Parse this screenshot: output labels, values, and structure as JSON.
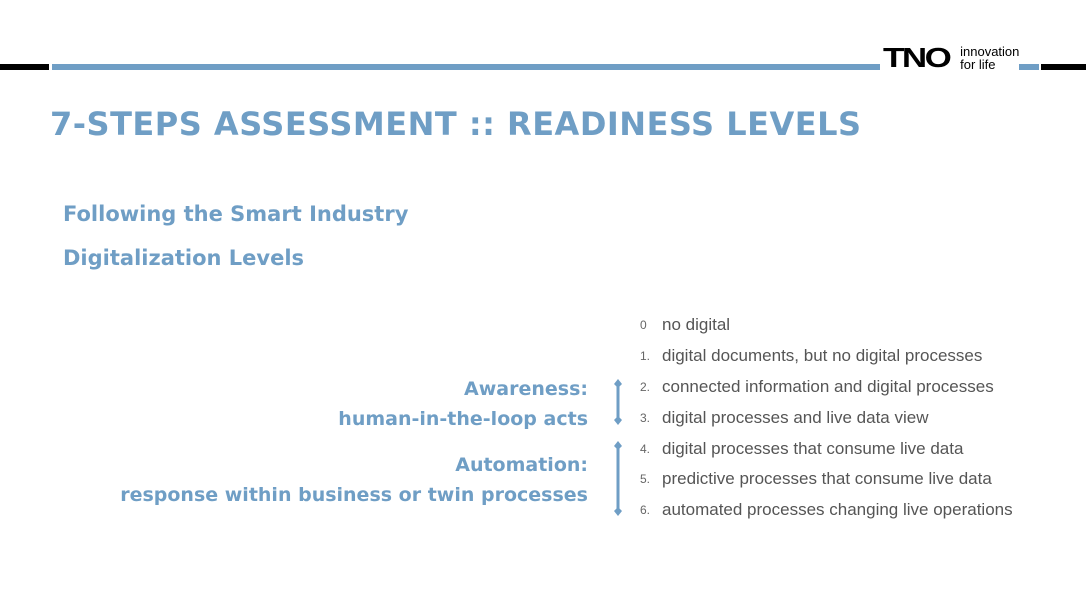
{
  "logo": {
    "mark": "TNO",
    "tagline_line1": "innovation",
    "tagline_line2": "for life"
  },
  "title": "7-STEPS ASSESSMENT :: READINESS LEVELS",
  "subtitle": {
    "line1": "Following the Smart Industry",
    "line2": "Digitalization Levels"
  },
  "groups": {
    "awareness": {
      "title": "Awareness:",
      "subtitle": "human-in-the-loop acts"
    },
    "automation": {
      "title": "Automation:",
      "subtitle": "response within business or twin processes"
    }
  },
  "levels": [
    {
      "num": "0",
      "text": "no digital"
    },
    {
      "num": "1.",
      "text": "digital documents, but no digital processes"
    },
    {
      "num": "2.",
      "text": "connected information and digital processes"
    },
    {
      "num": "3.",
      "text": "digital processes and live data view"
    },
    {
      "num": "4.",
      "text": "digital processes that consume live data"
    },
    {
      "num": "5.",
      "text": "predictive processes that consume live data"
    },
    {
      "num": "6.",
      "text": "automated processes changing live operations"
    }
  ],
  "colors": {
    "accent": "#6f9ec5",
    "text": "#555555",
    "black": "#000000"
  }
}
